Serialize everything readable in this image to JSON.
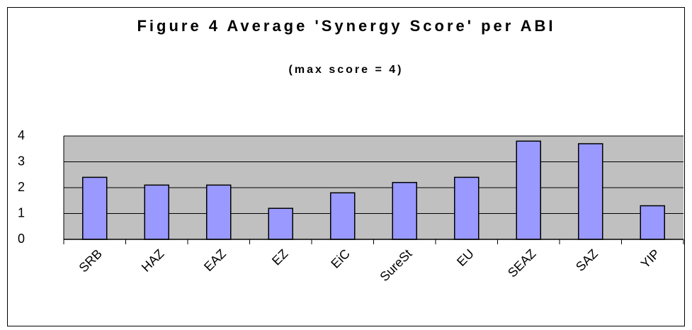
{
  "chart_data": {
    "type": "bar",
    "title": "Figure 4 Average 'Synergy Score' per ABI",
    "subtitle": "(max score = 4)",
    "categories": [
      "SRB",
      "HAZ",
      "EAZ",
      "EZ",
      "EiC",
      "SureSt",
      "EU",
      "SEAZ",
      "SAZ",
      "YIP"
    ],
    "values": [
      2.4,
      2.1,
      2.1,
      1.2,
      1.8,
      2.2,
      2.4,
      3.8,
      3.7,
      1.3
    ],
    "color": "#9999ff",
    "ylim": [
      0,
      4
    ],
    "yticks": [
      0,
      1,
      2,
      3,
      4
    ],
    "grid": true
  }
}
